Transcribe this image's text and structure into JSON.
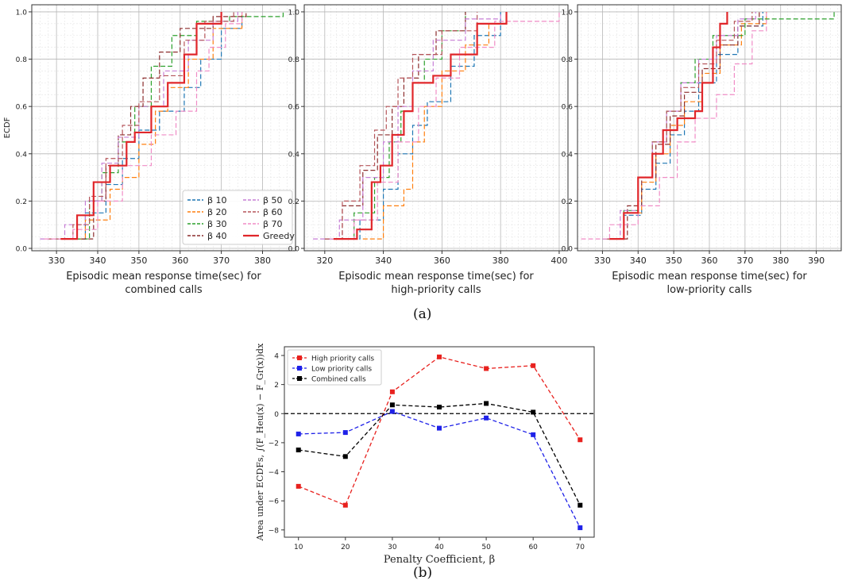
{
  "captions": {
    "a": "(a)",
    "b": "(b)"
  },
  "colors": {
    "b10": "#1f77b4",
    "b20": "#ff7f0e",
    "b30": "#2ca02c",
    "b40": "#8c2d2d",
    "b50": "#c77fd6",
    "b60": "#b5555a",
    "b70": "#f08cc6",
    "greedy": "#e0262a",
    "high": "#e8211e",
    "low": "#1f22e8",
    "combined": "#000000",
    "zero": "#000000"
  },
  "chart_data": [
    {
      "type": "line",
      "panel": "combined",
      "ylabel": "ECDF",
      "xlabel": [
        "Episodic mean response time(sec) for",
        "combined calls"
      ],
      "xlim": [
        324,
        388
      ],
      "ylim": [
        -0.01,
        1.03
      ],
      "xticks": [
        330,
        340,
        350,
        360,
        370,
        380
      ],
      "yticks": [
        0.0,
        0.2,
        0.4,
        0.6,
        0.8,
        1.0
      ],
      "legend": {
        "location": "bottom-right",
        "columns": 2,
        "order": [
          "b10",
          "b20",
          "b30",
          "b40",
          "b50",
          "b60",
          "b70",
          "greedy"
        ]
      },
      "series": [
        {
          "key": "b10",
          "name": "β 10",
          "x": [
            331,
            337,
            342,
            346,
            350,
            355,
            361,
            365,
            370,
            375
          ],
          "y": [
            0.04,
            0.15,
            0.27,
            0.38,
            0.5,
            0.58,
            0.68,
            0.8,
            0.93,
            1.0
          ]
        },
        {
          "key": "b20",
          "name": "β 20",
          "x": [
            332,
            337,
            343,
            346,
            350,
            354,
            357,
            362,
            368,
            375
          ],
          "y": [
            0.04,
            0.12,
            0.25,
            0.3,
            0.44,
            0.58,
            0.68,
            0.8,
            0.93,
            1.0
          ]
        },
        {
          "key": "b30",
          "name": "β 30",
          "x": [
            333,
            338,
            341,
            345,
            349,
            353,
            358,
            364,
            372,
            385
          ],
          "y": [
            0.04,
            0.2,
            0.32,
            0.45,
            0.6,
            0.77,
            0.9,
            0.96,
            0.98,
            1.0
          ]
        },
        {
          "key": "b40",
          "name": "β 40",
          "x": [
            336,
            339,
            342,
            345,
            348,
            351,
            355,
            360,
            368,
            376
          ],
          "y": [
            0.04,
            0.2,
            0.35,
            0.48,
            0.6,
            0.72,
            0.83,
            0.93,
            0.98,
            1.0
          ]
        },
        {
          "key": "b50",
          "name": "β 50",
          "x": [
            326,
            332,
            337,
            341,
            345,
            350,
            356,
            362,
            368,
            374
          ],
          "y": [
            0.04,
            0.1,
            0.2,
            0.36,
            0.47,
            0.6,
            0.75,
            0.88,
            0.96,
            1.0
          ]
        },
        {
          "key": "b60",
          "name": "β 60",
          "x": [
            328,
            334,
            338,
            342,
            346,
            350,
            355,
            361,
            366,
            373
          ],
          "y": [
            0.04,
            0.1,
            0.22,
            0.38,
            0.52,
            0.62,
            0.73,
            0.88,
            0.96,
            1.0
          ]
        },
        {
          "key": "b70",
          "name": "β 70",
          "x": [
            327,
            334,
            340,
            346,
            353,
            359,
            364,
            367,
            371,
            375
          ],
          "y": [
            0.04,
            0.08,
            0.2,
            0.35,
            0.48,
            0.58,
            0.75,
            0.85,
            0.95,
            1.0
          ]
        },
        {
          "key": "greedy",
          "name": "Greedy",
          "x": [
            331,
            335,
            339,
            343,
            347,
            349,
            353,
            357,
            361,
            364,
            370
          ],
          "y": [
            0.04,
            0.14,
            0.28,
            0.35,
            0.45,
            0.49,
            0.6,
            0.7,
            0.82,
            0.95,
            1.0
          ]
        }
      ]
    },
    {
      "type": "line",
      "panel": "high-priority",
      "ylabel": "",
      "xlabel": [
        "Episodic mean response time(sec) for",
        "high-priority calls"
      ],
      "xlim": [
        313,
        403
      ],
      "ylim": [
        -0.01,
        1.03
      ],
      "xticks": [
        320,
        340,
        360,
        380,
        400
      ],
      "yticks": [
        0.0,
        0.2,
        0.4,
        0.6,
        0.8,
        1.0
      ],
      "series": [
        {
          "key": "b10",
          "name": "β 10",
          "x": [
            322,
            332,
            340,
            345,
            350,
            355,
            363,
            371,
            380
          ],
          "y": [
            0.04,
            0.12,
            0.25,
            0.4,
            0.52,
            0.62,
            0.77,
            0.9,
            1.0
          ]
        },
        {
          "key": "b20",
          "name": "β 20",
          "x": [
            333,
            340,
            347,
            350,
            354,
            360,
            368,
            376,
            382
          ],
          "y": [
            0.04,
            0.18,
            0.25,
            0.45,
            0.6,
            0.75,
            0.86,
            0.95,
            1.0
          ]
        },
        {
          "key": "b30",
          "name": "β 30",
          "x": [
            323,
            330,
            337,
            342,
            346,
            350,
            354,
            360,
            368
          ],
          "y": [
            0.04,
            0.15,
            0.3,
            0.45,
            0.58,
            0.7,
            0.8,
            0.92,
            1.0
          ]
        },
        {
          "key": "b40",
          "name": "β 40",
          "x": [
            320,
            326,
            333,
            338,
            343,
            347,
            352,
            358,
            368
          ],
          "y": [
            0.04,
            0.18,
            0.33,
            0.48,
            0.6,
            0.72,
            0.82,
            0.92,
            1.0
          ]
        },
        {
          "key": "b50",
          "name": "β 50",
          "x": [
            316,
            325,
            333,
            340,
            345,
            350,
            357,
            368,
            380
          ],
          "y": [
            0.04,
            0.12,
            0.3,
            0.45,
            0.6,
            0.75,
            0.88,
            0.97,
            1.0
          ]
        },
        {
          "key": "b60",
          "name": "β 60",
          "x": [
            320,
            326,
            332,
            337,
            341,
            345,
            350,
            360,
            372
          ],
          "y": [
            0.04,
            0.2,
            0.35,
            0.5,
            0.6,
            0.72,
            0.82,
            0.92,
            1.0
          ]
        },
        {
          "key": "b70",
          "name": "β 70",
          "x": [
            322,
            330,
            338,
            345,
            352,
            358,
            366,
            378,
            400
          ],
          "y": [
            0.04,
            0.12,
            0.28,
            0.45,
            0.6,
            0.72,
            0.85,
            0.96,
            1.0
          ]
        },
        {
          "key": "greedy",
          "name": "Greedy",
          "x": [
            323,
            331,
            336,
            339,
            343,
            347,
            350,
            357,
            363,
            372,
            382
          ],
          "y": [
            0.04,
            0.08,
            0.28,
            0.35,
            0.48,
            0.58,
            0.7,
            0.73,
            0.82,
            0.95,
            1.0
          ]
        }
      ]
    },
    {
      "type": "line",
      "panel": "low-priority",
      "ylabel": "",
      "xlabel": [
        "Episodic mean response time(sec) for",
        "low-priority calls"
      ],
      "xlim": [
        323,
        397
      ],
      "ylim": [
        -0.01,
        1.03
      ],
      "xticks": [
        330,
        340,
        350,
        360,
        370,
        380,
        390
      ],
      "yticks": [
        0.0,
        0.2,
        0.4,
        0.6,
        0.8,
        1.0
      ],
      "series": [
        {
          "key": "b10",
          "name": "β 10",
          "x": [
            330,
            336,
            341,
            345,
            349,
            353,
            357,
            362,
            368,
            375
          ],
          "y": [
            0.04,
            0.14,
            0.25,
            0.36,
            0.48,
            0.58,
            0.7,
            0.82,
            0.94,
            1.0
          ]
        },
        {
          "key": "b20",
          "name": "β 20",
          "x": [
            331,
            336,
            341,
            345,
            349,
            353,
            358,
            363,
            369,
            376
          ],
          "y": [
            0.04,
            0.15,
            0.28,
            0.4,
            0.52,
            0.62,
            0.74,
            0.86,
            0.95,
            1.0
          ]
        },
        {
          "key": "b30",
          "name": "β 30",
          "x": [
            331,
            336,
            340,
            344,
            348,
            352,
            356,
            361,
            370,
            395
          ],
          "y": [
            0.04,
            0.16,
            0.3,
            0.45,
            0.58,
            0.7,
            0.8,
            0.9,
            0.97,
            1.0
          ]
        },
        {
          "key": "b40",
          "name": "β 40",
          "x": [
            332,
            337,
            341,
            345,
            349,
            353,
            358,
            363,
            368,
            374
          ],
          "y": [
            0.04,
            0.18,
            0.3,
            0.44,
            0.56,
            0.66,
            0.76,
            0.86,
            0.94,
            1.0
          ]
        },
        {
          "key": "b50",
          "name": "β 50",
          "x": [
            330,
            335,
            340,
            344,
            348,
            352,
            357,
            362,
            368,
            373
          ],
          "y": [
            0.04,
            0.16,
            0.3,
            0.45,
            0.58,
            0.7,
            0.8,
            0.9,
            0.97,
            1.0
          ]
        },
        {
          "key": "b60",
          "name": "β 60",
          "x": [
            331,
            336,
            340,
            344,
            348,
            352,
            357,
            362,
            367,
            372
          ],
          "y": [
            0.04,
            0.15,
            0.3,
            0.45,
            0.58,
            0.68,
            0.78,
            0.88,
            0.96,
            1.0
          ]
        },
        {
          "key": "b70",
          "name": "β 70",
          "x": [
            324,
            332,
            340,
            346,
            351,
            356,
            362,
            367,
            372,
            376
          ],
          "y": [
            0.04,
            0.1,
            0.18,
            0.3,
            0.45,
            0.55,
            0.65,
            0.78,
            0.92,
            1.0
          ]
        },
        {
          "key": "greedy",
          "name": "Greedy",
          "x": [
            332,
            336,
            340,
            344,
            347,
            351,
            356,
            358,
            361,
            363,
            365
          ],
          "y": [
            0.04,
            0.15,
            0.3,
            0.4,
            0.5,
            0.55,
            0.58,
            0.7,
            0.85,
            0.95,
            1.0
          ]
        }
      ]
    },
    {
      "type": "line",
      "panel": "area-under-ecdf",
      "ylabel": "Area under ECDFs, ∫(F_Heu(x) − F_Gr(x))dx",
      "xlabel": "Penalty Coefficient, β",
      "xlim": [
        7,
        73
      ],
      "ylim": [
        -8.5,
        4.6
      ],
      "xticks": [
        10,
        20,
        30,
        40,
        50,
        60,
        70
      ],
      "yticks": [
        -8,
        -6,
        -4,
        -2,
        0,
        2,
        4
      ],
      "legend": {
        "location": "top-left"
      },
      "categories": [
        10,
        20,
        30,
        40,
        50,
        60,
        70
      ],
      "reference_line": 0,
      "series": [
        {
          "key": "high",
          "name": "High priority calls",
          "values": [
            -5.0,
            -6.3,
            1.5,
            3.9,
            3.1,
            3.3,
            -1.8
          ]
        },
        {
          "key": "low",
          "name": "Low priority calls",
          "values": [
            -1.4,
            -1.3,
            0.15,
            -1.0,
            -0.3,
            -1.45,
            -7.85
          ]
        },
        {
          "key": "combined",
          "name": "Combined calls",
          "values": [
            -2.5,
            -2.95,
            0.6,
            0.45,
            0.7,
            0.1,
            -6.3
          ]
        }
      ]
    }
  ]
}
